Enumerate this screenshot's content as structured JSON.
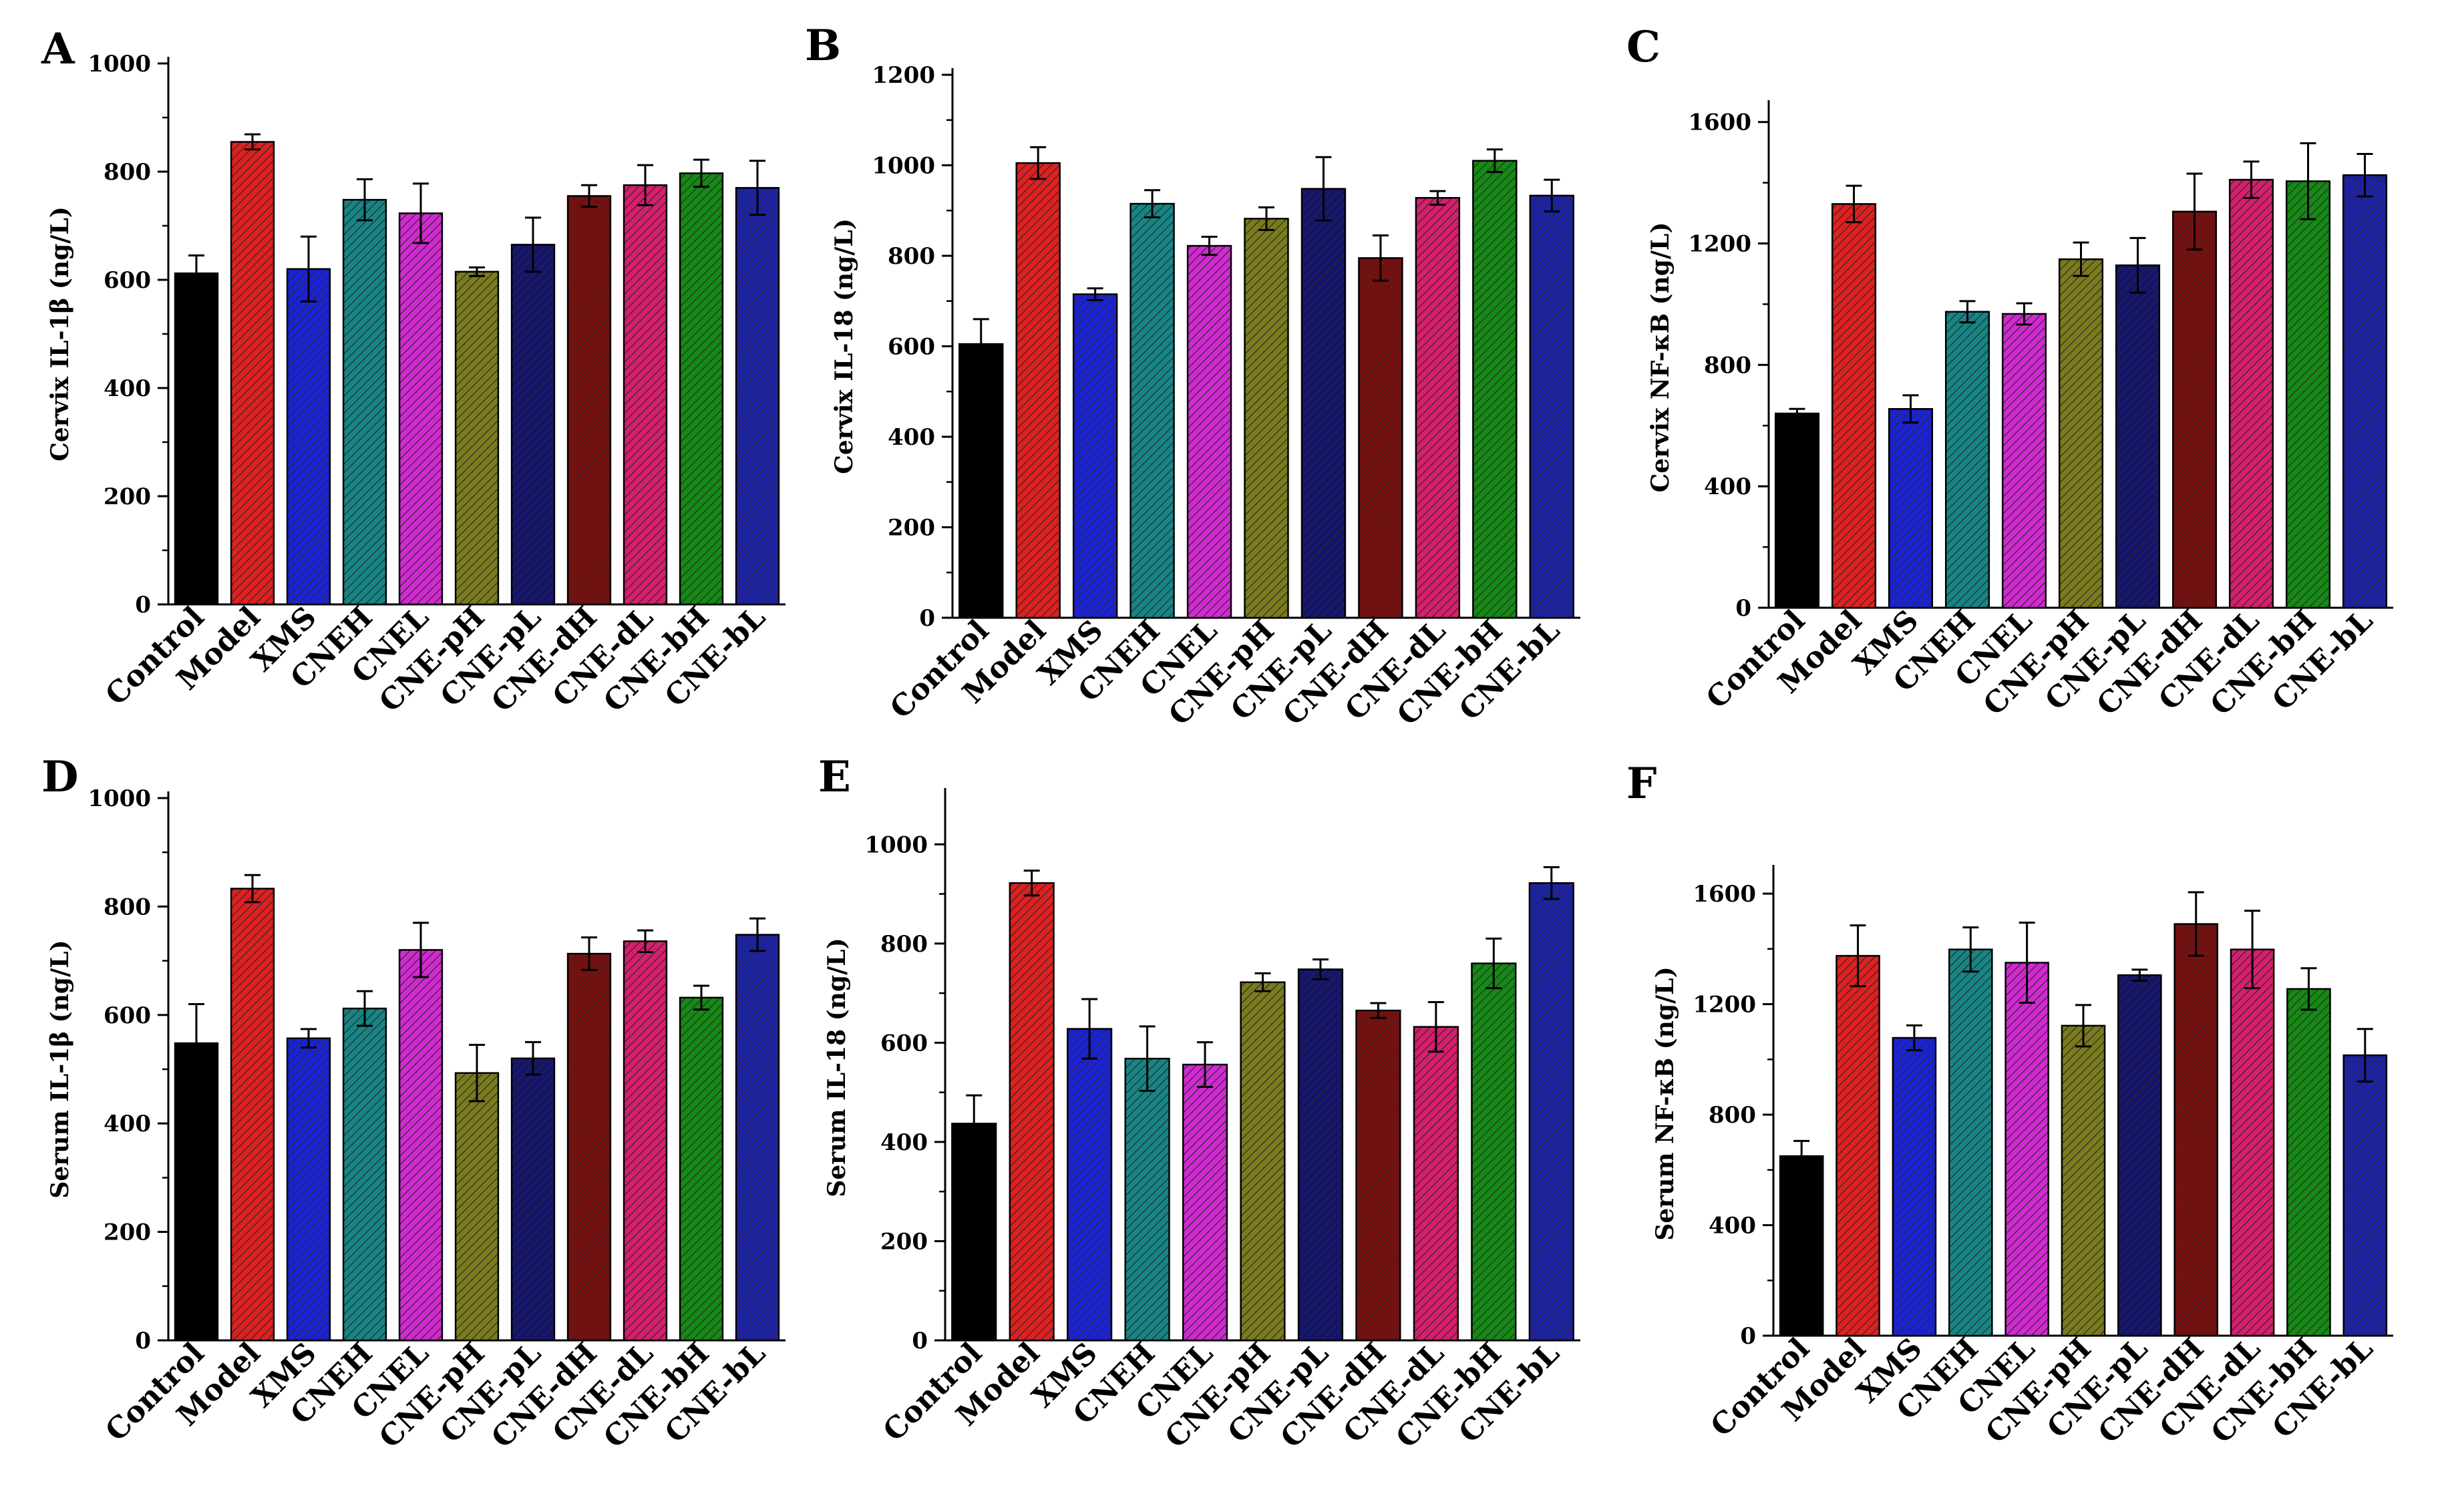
{
  "chart_data": [
    {
      "type": "bar",
      "panel": "A",
      "title": "",
      "ylabel": "Cervix IL-1β (ng/L)",
      "xlabel": "",
      "ylim": [
        0,
        1000
      ],
      "yticks": [
        0,
        200,
        400,
        600,
        800,
        1000
      ],
      "categories": [
        "Control",
        "Model",
        "XMS",
        "CNEH",
        "CNEL",
        "CNE-pH",
        "CNE-pL",
        "CNE-dH",
        "CNE-dL",
        "CNE-bH",
        "CNE-bL"
      ],
      "values": [
        612,
        855,
        620,
        748,
        723,
        615,
        665,
        755,
        775,
        797,
        770
      ],
      "errors": [
        33,
        14,
        60,
        38,
        55,
        8,
        50,
        20,
        37,
        25,
        50
      ]
    },
    {
      "type": "bar",
      "panel": "B",
      "title": "",
      "ylabel": "Cervix IL-18 (ng/L)",
      "xlabel": "",
      "ylim": [
        0,
        1200
      ],
      "yticks": [
        0,
        200,
        400,
        600,
        800,
        1000,
        1200
      ],
      "categories": [
        "Control",
        "Model",
        "XMS",
        "CNEH",
        "CNEL",
        "CNE-pH",
        "CNE-pL",
        "CNE-dH",
        "CNE-dL",
        "CNE-bH",
        "CNE-bL"
      ],
      "values": [
        605,
        1005,
        715,
        915,
        822,
        882,
        948,
        795,
        928,
        1010,
        933
      ],
      "errors": [
        55,
        35,
        13,
        30,
        20,
        25,
        70,
        50,
        15,
        25,
        35
      ]
    },
    {
      "type": "bar",
      "panel": "C",
      "title": "",
      "ylabel": "Cervix NF-κB (ng/L)",
      "xlabel": "",
      "ylim": [
        0,
        1650
      ],
      "yticks": [
        0,
        400,
        800,
        1200,
        1600
      ],
      "categories": [
        "Control",
        "Model",
        "XMS",
        "CNEH",
        "CNEL",
        "CNE-pH",
        "CNE-pL",
        "CNE-dH",
        "CNE-dL",
        "CNE-bH",
        "CNE-bL"
      ],
      "values": [
        640,
        1330,
        655,
        975,
        968,
        1148,
        1128,
        1305,
        1410,
        1405,
        1425
      ],
      "errors": [
        15,
        60,
        45,
        35,
        35,
        55,
        90,
        125,
        60,
        125,
        70
      ]
    },
    {
      "type": "bar",
      "panel": "D",
      "title": "",
      "ylabel": "Serum IL-1β (ng/L)",
      "xlabel": "",
      "ylim": [
        0,
        1000
      ],
      "yticks": [
        0,
        200,
        400,
        600,
        800,
        1000
      ],
      "categories": [
        "Control",
        "Model",
        "XMS",
        "CNEH",
        "CNEL",
        "CNE-pH",
        "CNE-pL",
        "CNE-dH",
        "CNE-dL",
        "CNE-bH",
        "CNE-bL"
      ],
      "values": [
        548,
        833,
        557,
        612,
        720,
        493,
        520,
        713,
        736,
        632,
        748
      ],
      "errors": [
        72,
        25,
        17,
        32,
        50,
        52,
        30,
        30,
        20,
        22,
        30
      ]
    },
    {
      "type": "bar",
      "panel": "E",
      "title": "",
      "ylabel": "Serum IL-18 (ng/L)",
      "xlabel": "",
      "ylim": [
        0,
        1100
      ],
      "yticks": [
        0,
        200,
        400,
        600,
        800,
        1000
      ],
      "categories": [
        "Control",
        "Model",
        "XMS",
        "CNEH",
        "CNEL",
        "CNE-pH",
        "CNE-pL",
        "CNE-dH",
        "CNE-dL",
        "CNE-bH",
        "CNE-bL"
      ],
      "values": [
        437,
        922,
        628,
        568,
        556,
        722,
        748,
        665,
        632,
        760,
        922
      ],
      "errors": [
        57,
        25,
        60,
        65,
        45,
        18,
        20,
        15,
        50,
        50,
        32
      ]
    },
    {
      "type": "bar",
      "panel": "F",
      "title": "",
      "ylabel": "Serum NF-κB (ng/L)",
      "xlabel": "",
      "ylim": [
        0,
        1680
      ],
      "yticks": [
        0,
        400,
        800,
        1200,
        1600
      ],
      "categories": [
        "Control",
        "Model",
        "XMS",
        "CNEH",
        "CNEL",
        "CNE-pH",
        "CNE-pL",
        "CNE-dH",
        "CNE-dL",
        "CNE-bH",
        "CNE-bL"
      ],
      "values": [
        650,
        1375,
        1078,
        1398,
        1350,
        1122,
        1305,
        1490,
        1398,
        1255,
        1015
      ],
      "errors": [
        55,
        110,
        45,
        80,
        145,
        75,
        20,
        115,
        140,
        75,
        95
      ]
    }
  ],
  "bar_colors": [
    "#000000",
    "#e02020",
    "#1a22d8",
    "#178585",
    "#d22ad2",
    "#7b7b1e",
    "#14146e",
    "#7a0e0e",
    "#d81e6e",
    "#158a15",
    "#1c22a8"
  ],
  "hatch_color": "#2a2a2a"
}
